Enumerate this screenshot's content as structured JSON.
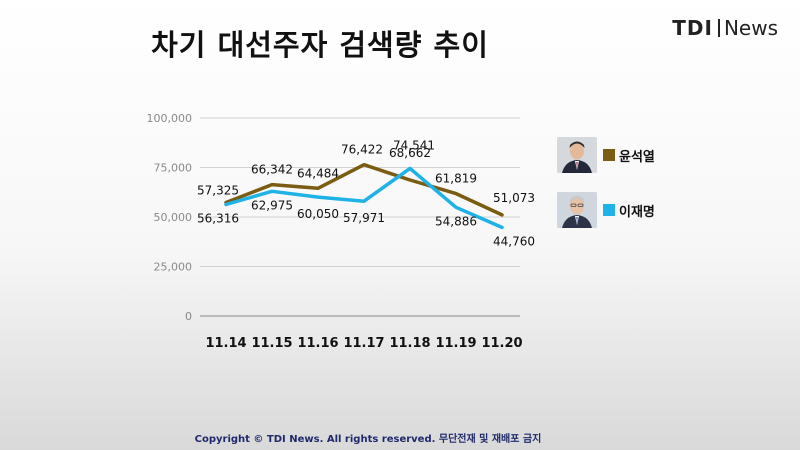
{
  "title": "차기 대선주자 검색량 추이",
  "logo": {
    "brand": "TDI",
    "suffix": "News"
  },
  "footer": "Copyright © TDI News. All rights reserved. 무단전재 및 재배포 금지",
  "colors": {
    "yoon": "#7a5c12",
    "lee": "#1fb2e6"
  },
  "legend": [
    {
      "name": "윤석열",
      "color": "#7a5c12",
      "photo_icon": "person-photo-icon"
    },
    {
      "name": "이재명",
      "color": "#1fb2e6",
      "photo_icon": "person-photo-icon"
    }
  ],
  "chart_data": {
    "type": "line",
    "categories": [
      "11.14",
      "11.15",
      "11.16",
      "11.17",
      "11.18",
      "11.19",
      "11.20"
    ],
    "series": [
      {
        "name": "윤석열",
        "values": [
          57325,
          66342,
          64484,
          76422,
          68662,
          61819,
          51073
        ]
      },
      {
        "name": "이재명",
        "values": [
          56316,
          62975,
          60050,
          57971,
          74541,
          54886,
          44760
        ]
      }
    ],
    "y_ticks": [
      "0",
      "25,000",
      "50,000",
      "75,000",
      "100,000"
    ],
    "ylim": [
      0,
      100000
    ],
    "grid": true,
    "data_labels": [
      [
        "57,325",
        "66,342",
        "64,484",
        "76,422",
        "68,662",
        "61,819",
        "51,073"
      ],
      [
        "56,316",
        "62,975",
        "60,050",
        "57,971",
        "74,541",
        "54,886",
        "44,760"
      ]
    ],
    "legend_position": "right"
  }
}
